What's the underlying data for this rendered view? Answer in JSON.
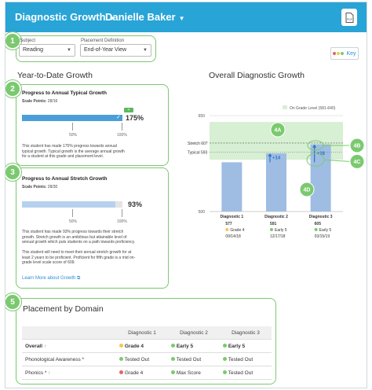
{
  "header": {
    "title": "Diagnostic Growth",
    "student": "Danielle Baker"
  },
  "filters": {
    "subject_label": "Subject",
    "subject_value": "Reading",
    "placement_label": "Placement Definition",
    "placement_value": "End-of-Year View"
  },
  "key_label": "Key",
  "callouts": {
    "n1": "1",
    "n2": "2",
    "n3": "3",
    "n5": "5",
    "c4a": "4A",
    "c4b": "4B",
    "c4c": "4C",
    "c4d": "4D"
  },
  "ytd": {
    "title": "Year-to-Date Growth",
    "typical": {
      "title": "Progress to Annual Typical Growth",
      "scale_label": "Scale Points:",
      "scale_value": "28/16",
      "percent": "175%",
      "fill": 1.0,
      "tick_50": "50%",
      "tick_100": "100%",
      "text": "This student has made 175% progress towards annual typical growth. Typical growth is the average annual growth for a student at this grade and placement level."
    },
    "stretch": {
      "title": "Progress to Annual Stretch Growth",
      "scale_label": "Scale Points:",
      "scale_value": "28/30",
      "percent": "93%",
      "fill": 0.93,
      "tick_50": "50%",
      "tick_100": "100%",
      "text1": "This student has made 93% progress towards their stretch growth. Stretch growth is an ambitious but attainable level of annual growth which puts students on a path towards proficiency.",
      "text2": "This student will need to meet their annual stretch growth for at least 2 years to be proficient. Proficient for fifth grade is a mid on-grade level scale score of 609.",
      "link": "Learn More about Growth"
    }
  },
  "chart_data": {
    "type": "bar",
    "title": "Overall Diagnostic Growth",
    "legend": "On Grade Level (581-640)",
    "ylim": [
      500,
      650
    ],
    "y_ticks": [
      "650",
      "500"
    ],
    "on_grade_range": [
      581,
      640
    ],
    "stretch_label": "Stretch 607",
    "stretch": 607,
    "typical_label": "Typical 593",
    "typical": 593,
    "categories": [
      "Diagnostic 1",
      "Diagnostic 2",
      "Diagnostic 3"
    ],
    "values": [
      577,
      591,
      605
    ],
    "value_labels": [
      "577",
      "591",
      "605"
    ],
    "levels": [
      "Grade 4",
      "Early 5",
      "Early 5"
    ],
    "level_colors": [
      "#f2c94c",
      "#7bc96f",
      "#7bc96f"
    ],
    "dates": [
      "09/14/18",
      "12/17/18",
      "03/15/19"
    ],
    "growth_labels": [
      "+14",
      "+28"
    ],
    "colors": {
      "bar": "#9fbde3",
      "band": "#d7efd3",
      "arrow": "#2d74c4"
    }
  },
  "placement": {
    "title": "Placement by Domain",
    "columns": [
      "Diagnostic 1",
      "Diagnostic 2",
      "Diagnostic 3"
    ],
    "rows": [
      {
        "name": "Overall",
        "mark": "↑",
        "cells": [
          {
            "text": "Grade 4",
            "color": "#f2c94c"
          },
          {
            "text": "Early 5",
            "color": "#7bc96f"
          },
          {
            "text": "Early 5",
            "color": "#7bc96f"
          }
        ]
      },
      {
        "name": "Phonological Awareness *",
        "mark": "",
        "cells": [
          {
            "text": "Tested Out",
            "color": "#7bc96f"
          },
          {
            "text": "Tested Out",
            "color": "#7bc96f"
          },
          {
            "text": "Tested Out",
            "color": "#7bc96f"
          }
        ]
      },
      {
        "name": "Phonics *",
        "mark": "↑",
        "cells": [
          {
            "text": "Grade 4",
            "color": "#e06666"
          },
          {
            "text": "Max Score",
            "color": "#7bc96f"
          },
          {
            "text": "Tested Out",
            "color": "#7bc96f"
          }
        ]
      }
    ]
  }
}
